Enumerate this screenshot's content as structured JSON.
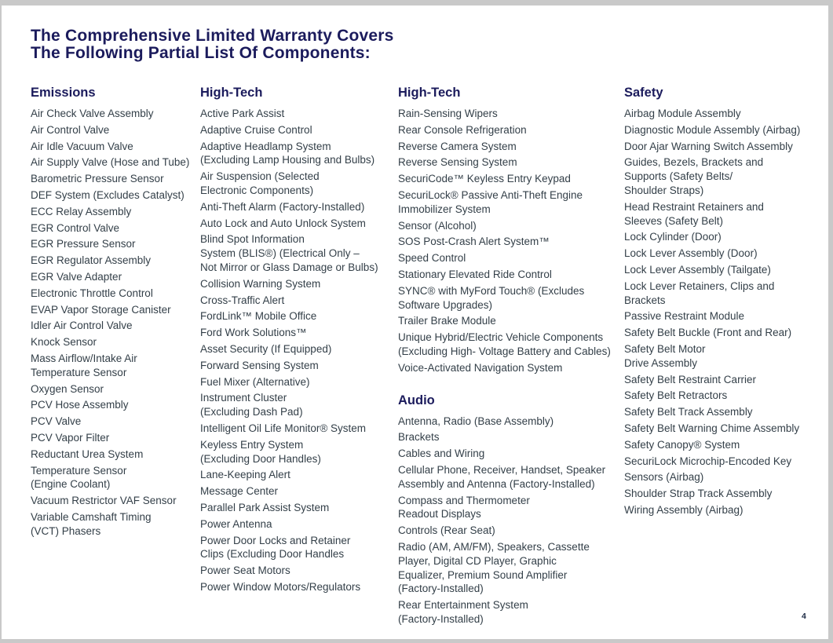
{
  "page": {
    "title_line1": "The Comprehensive Limited Warranty Covers",
    "title_line2": "The Following Partial List Of Components:",
    "page_number": "4"
  },
  "colors": {
    "heading_navy": "#1b1b5c",
    "body_text": "#333f48",
    "page_background": "#ffffff",
    "surround_background": "#c9c9c9"
  },
  "columns": [
    {
      "sections": [
        {
          "heading": "Emissions",
          "items": [
            "Air Check Valve Assembly",
            "Air Control Valve",
            "Air Idle Vacuum Valve",
            "Air Supply Valve (Hose and Tube)",
            "Barometric Pressure Sensor",
            "DEF System (Excludes Catalyst)",
            "ECC Relay Assembly",
            "EGR Control Valve",
            "EGR Pressure Sensor",
            "EGR Regulator Assembly",
            "EGR Valve Adapter",
            "Electronic Throttle Control",
            "EVAP Vapor Storage Canister",
            "Idler Air Control Valve",
            "Knock Sensor",
            "Mass Airflow/Intake Air\nTemperature Sensor",
            "Oxygen Sensor",
            "PCV Hose Assembly",
            "PCV Valve",
            "PCV Vapor Filter",
            "Reductant Urea System",
            "Temperature Sensor\n(Engine Coolant)",
            "Vacuum Restrictor VAF Sensor",
            "Variable Camshaft Timing\n(VCT) Phasers"
          ]
        }
      ]
    },
    {
      "sections": [
        {
          "heading": "High-Tech",
          "items": [
            "Active Park Assist",
            "Adaptive Cruise Control",
            "Adaptive Headlamp System\n(Excluding Lamp Housing and Bulbs)",
            "Air Suspension (Selected\nElectronic Components)",
            "Anti-Theft Alarm (Factory-Installed)",
            "Auto Lock and Auto Unlock System",
            "Blind Spot Information\nSystem (BLIS®) (Electrical Only –\nNot Mirror or Glass Damage or Bulbs)",
            "Collision Warning System",
            "Cross-Traffic Alert",
            "FordLink™ Mobile Office",
            "Ford Work Solutions™",
            "Asset Security (If Equipped)",
            "Forward Sensing System",
            "Fuel Mixer (Alternative)",
            "Instrument Cluster\n(Excluding Dash Pad)",
            "Intelligent Oil Life Monitor® System",
            "Keyless Entry System\n(Excluding Door Handles)",
            "Lane-Keeping Alert",
            "Message Center",
            "Parallel Park Assist System",
            "Power Antenna",
            "Power Door Locks and Retainer\nClips (Excluding Door Handles",
            "Power Seat Motors",
            "Power Window Motors/Regulators"
          ]
        }
      ]
    },
    {
      "sections": [
        {
          "heading": "High-Tech",
          "items": [
            "Rain-Sensing Wipers",
            "Rear Console Refrigeration",
            "Reverse Camera System",
            "Reverse Sensing System",
            "SecuriCode™ Keyless Entry Keypad",
            "SecuriLock® Passive Anti-Theft Engine\nImmobilizer System",
            "Sensor (Alcohol)",
            "SOS Post-Crash Alert System™",
            "Speed Control",
            "Stationary Elevated Ride Control",
            "SYNC® with MyFord Touch® (Excludes\nSoftware Upgrades)",
            "Trailer Brake Module",
            "Unique Hybrid/Electric Vehicle Components\n(Excluding High- Voltage Battery and Cables)",
            "Voice-Activated Navigation System"
          ]
        },
        {
          "heading": "Audio",
          "items": [
            "Antenna, Radio (Base Assembly)",
            "Brackets",
            "Cables and Wiring",
            "Cellular Phone, Receiver, Handset, Speaker\nAssembly and Antenna (Factory-Installed)",
            "Compass and Thermometer\nReadout Displays",
            "Controls (Rear Seat)",
            "Radio (AM, AM/FM), Speakers, Cassette\nPlayer, Digital CD Player, Graphic\nEqualizer, Premium Sound Amplifier\n(Factory-Installed)",
            "Rear Entertainment System\n(Factory-Installed)"
          ]
        }
      ]
    },
    {
      "sections": [
        {
          "heading": "Safety",
          "items": [
            "Airbag Module Assembly",
            "Diagnostic Module Assembly (Airbag)",
            "Door Ajar Warning Switch Assembly",
            "Guides, Bezels, Brackets and\nSupports (Safety Belts/\nShoulder Straps)",
            "Head Restraint Retainers and\nSleeves (Safety Belt)",
            "Lock Cylinder (Door)",
            "Lock Lever Assembly (Door)",
            "Lock Lever Assembly (Tailgate)",
            "Lock Lever Retainers, Clips and\nBrackets",
            "Passive Restraint Module",
            "Safety Belt Buckle (Front and Rear)",
            "Safety Belt Motor\nDrive Assembly",
            "Safety Belt Restraint Carrier",
            "Safety Belt Retractors",
            "Safety Belt Track Assembly",
            "Safety Belt Warning Chime Assembly",
            "Safety Canopy® System",
            "SecuriLock Microchip-Encoded Key",
            "Sensors (Airbag)",
            "Shoulder Strap Track Assembly",
            "Wiring Assembly (Airbag)"
          ]
        }
      ]
    }
  ]
}
